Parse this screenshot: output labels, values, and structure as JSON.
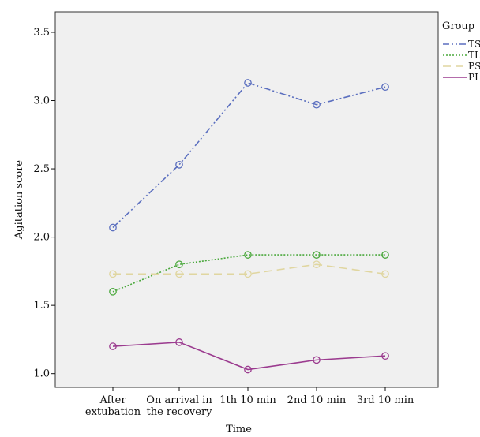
{
  "chart_data": {
    "type": "line",
    "title": "",
    "xlabel": "Time",
    "ylabel": "Agitation score",
    "categories": [
      [
        "After",
        "extubation"
      ],
      [
        "On arrival in",
        "the recovery"
      ],
      [
        "1th 10 min"
      ],
      [
        "2nd 10 min"
      ],
      [
        "3rd 10 min"
      ]
    ],
    "yticks": [
      "1.0",
      "1.5",
      "2.0",
      "2.5",
      "3.0",
      "3.5"
    ],
    "ylim": [
      0.9,
      3.65
    ],
    "grid": false,
    "legend": {
      "title": "Group",
      "placement": "right"
    },
    "series": [
      {
        "name": "TS",
        "color": "#5b6fbf",
        "dash": "dash-dot-dot",
        "values": [
          2.07,
          2.53,
          3.13,
          2.97,
          3.1
        ]
      },
      {
        "name": "TL",
        "color": "#4aa83c",
        "dash": "dotted",
        "values": [
          1.6,
          1.8,
          1.87,
          1.87,
          1.87
        ]
      },
      {
        "name": "PS",
        "color": "#e0d6a0",
        "dash": "dashed",
        "values": [
          1.73,
          1.73,
          1.73,
          1.8,
          1.73
        ]
      },
      {
        "name": "PL",
        "color": "#9b3b8f",
        "dash": "solid",
        "values": [
          1.2,
          1.23,
          1.03,
          1.1,
          1.13
        ]
      }
    ]
  }
}
